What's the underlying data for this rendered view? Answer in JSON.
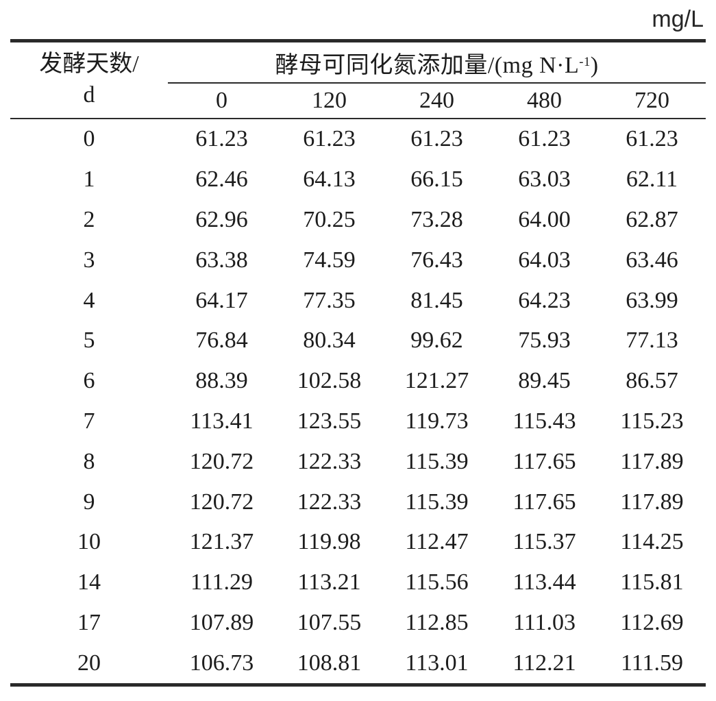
{
  "page": {
    "unit_label": "mg/L"
  },
  "table": {
    "row_header": {
      "line1": "发酵天数/",
      "line2": "d"
    },
    "col_group_header": {
      "prefix": "酵母可同化氮添加量/(mg N·L",
      "sup": "-1",
      "suffix": ")"
    },
    "col_headers": [
      "0",
      "120",
      "240",
      "480",
      "720"
    ],
    "rows": [
      {
        "day": "0",
        "values": [
          "61.23",
          "61.23",
          "61.23",
          "61.23",
          "61.23"
        ]
      },
      {
        "day": "1",
        "values": [
          "62.46",
          "64.13",
          "66.15",
          "63.03",
          "62.11"
        ]
      },
      {
        "day": "2",
        "values": [
          "62.96",
          "70.25",
          "73.28",
          "64.00",
          "62.87"
        ]
      },
      {
        "day": "3",
        "values": [
          "63.38",
          "74.59",
          "76.43",
          "64.03",
          "63.46"
        ]
      },
      {
        "day": "4",
        "values": [
          "64.17",
          "77.35",
          "81.45",
          "64.23",
          "63.99"
        ]
      },
      {
        "day": "5",
        "values": [
          "76.84",
          "80.34",
          "99.62",
          "75.93",
          "77.13"
        ]
      },
      {
        "day": "6",
        "values": [
          "88.39",
          "102.58",
          "121.27",
          "89.45",
          "86.57"
        ]
      },
      {
        "day": "7",
        "values": [
          "113.41",
          "123.55",
          "119.73",
          "115.43",
          "115.23"
        ]
      },
      {
        "day": "8",
        "values": [
          "120.72",
          "122.33",
          "115.39",
          "117.65",
          "117.89"
        ]
      },
      {
        "day": "9",
        "values": [
          "120.72",
          "122.33",
          "115.39",
          "117.65",
          "117.89"
        ]
      },
      {
        "day": "10",
        "values": [
          "121.37",
          "119.98",
          "112.47",
          "115.37",
          "114.25"
        ]
      },
      {
        "day": "14",
        "values": [
          "111.29",
          "113.21",
          "115.56",
          "113.44",
          "115.81"
        ]
      },
      {
        "day": "17",
        "values": [
          "107.89",
          "107.55",
          "112.85",
          "111.03",
          "112.69"
        ]
      },
      {
        "day": "20",
        "values": [
          "106.73",
          "108.81",
          "113.01",
          "112.21",
          "111.59"
        ]
      }
    ]
  },
  "chart_data": {
    "type": "table",
    "unit": "mg/L",
    "row_axis_label": "发酵天数/d",
    "column_group_label": "酵母可同化氮添加量/(mg N·L-1)",
    "categories": [
      0,
      1,
      2,
      3,
      4,
      5,
      6,
      7,
      8,
      9,
      10,
      14,
      17,
      20
    ],
    "series": [
      {
        "name": "0",
        "values": [
          61.23,
          62.46,
          62.96,
          63.38,
          64.17,
          76.84,
          88.39,
          113.41,
          120.72,
          120.72,
          121.37,
          111.29,
          107.89,
          106.73
        ]
      },
      {
        "name": "120",
        "values": [
          61.23,
          64.13,
          70.25,
          74.59,
          77.35,
          80.34,
          102.58,
          123.55,
          122.33,
          122.33,
          119.98,
          113.21,
          107.55,
          108.81
        ]
      },
      {
        "name": "240",
        "values": [
          61.23,
          66.15,
          73.28,
          76.43,
          81.45,
          99.62,
          121.27,
          119.73,
          115.39,
          115.39,
          112.47,
          115.56,
          112.85,
          113.01
        ]
      },
      {
        "name": "480",
        "values": [
          61.23,
          63.03,
          64.0,
          64.03,
          64.23,
          75.93,
          89.45,
          115.43,
          117.65,
          117.65,
          115.37,
          113.44,
          111.03,
          112.21
        ]
      },
      {
        "name": "720",
        "values": [
          61.23,
          62.11,
          62.87,
          63.46,
          63.99,
          77.13,
          86.57,
          115.23,
          117.89,
          117.89,
          114.25,
          115.81,
          112.69,
          111.59
        ]
      }
    ]
  }
}
